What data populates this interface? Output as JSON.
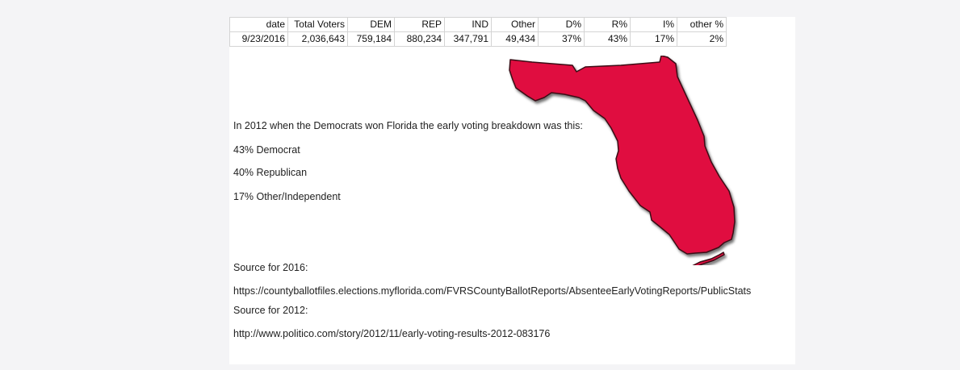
{
  "table": {
    "headers": [
      "date",
      "Total Voters",
      "DEM",
      "REP",
      "IND",
      "Other",
      "D%",
      "R%",
      "I%",
      "other %"
    ],
    "rows": [
      [
        "9/23/2016",
        "2,036,643",
        "759,184",
        "880,234",
        "347,791",
        "49,434",
        "37%",
        "43%",
        "17%",
        "2%"
      ]
    ]
  },
  "map": {
    "icon": "florida-state-map",
    "fill_color": "#e0103f",
    "outline_color": "#3a0a14"
  },
  "notes": {
    "intro": "In 2012 when the Democrats won Florida  the early voting breakdown was this:",
    "line_dem": "43% Democrat",
    "line_rep": "40% Republican",
    "line_other": "17% Other/Independent",
    "source_2016_label": "Source for 2016:",
    "source_2016_url": "https://countyballotfiles.elections.myflorida.com/FVRSCountyBallotReports/AbsenteeEarlyVotingReports/PublicStats",
    "source_2012_label": "Source for 2012:",
    "source_2012_url": "http://www.politico.com/story/2012/11/early-voting-results-2012-083176"
  }
}
